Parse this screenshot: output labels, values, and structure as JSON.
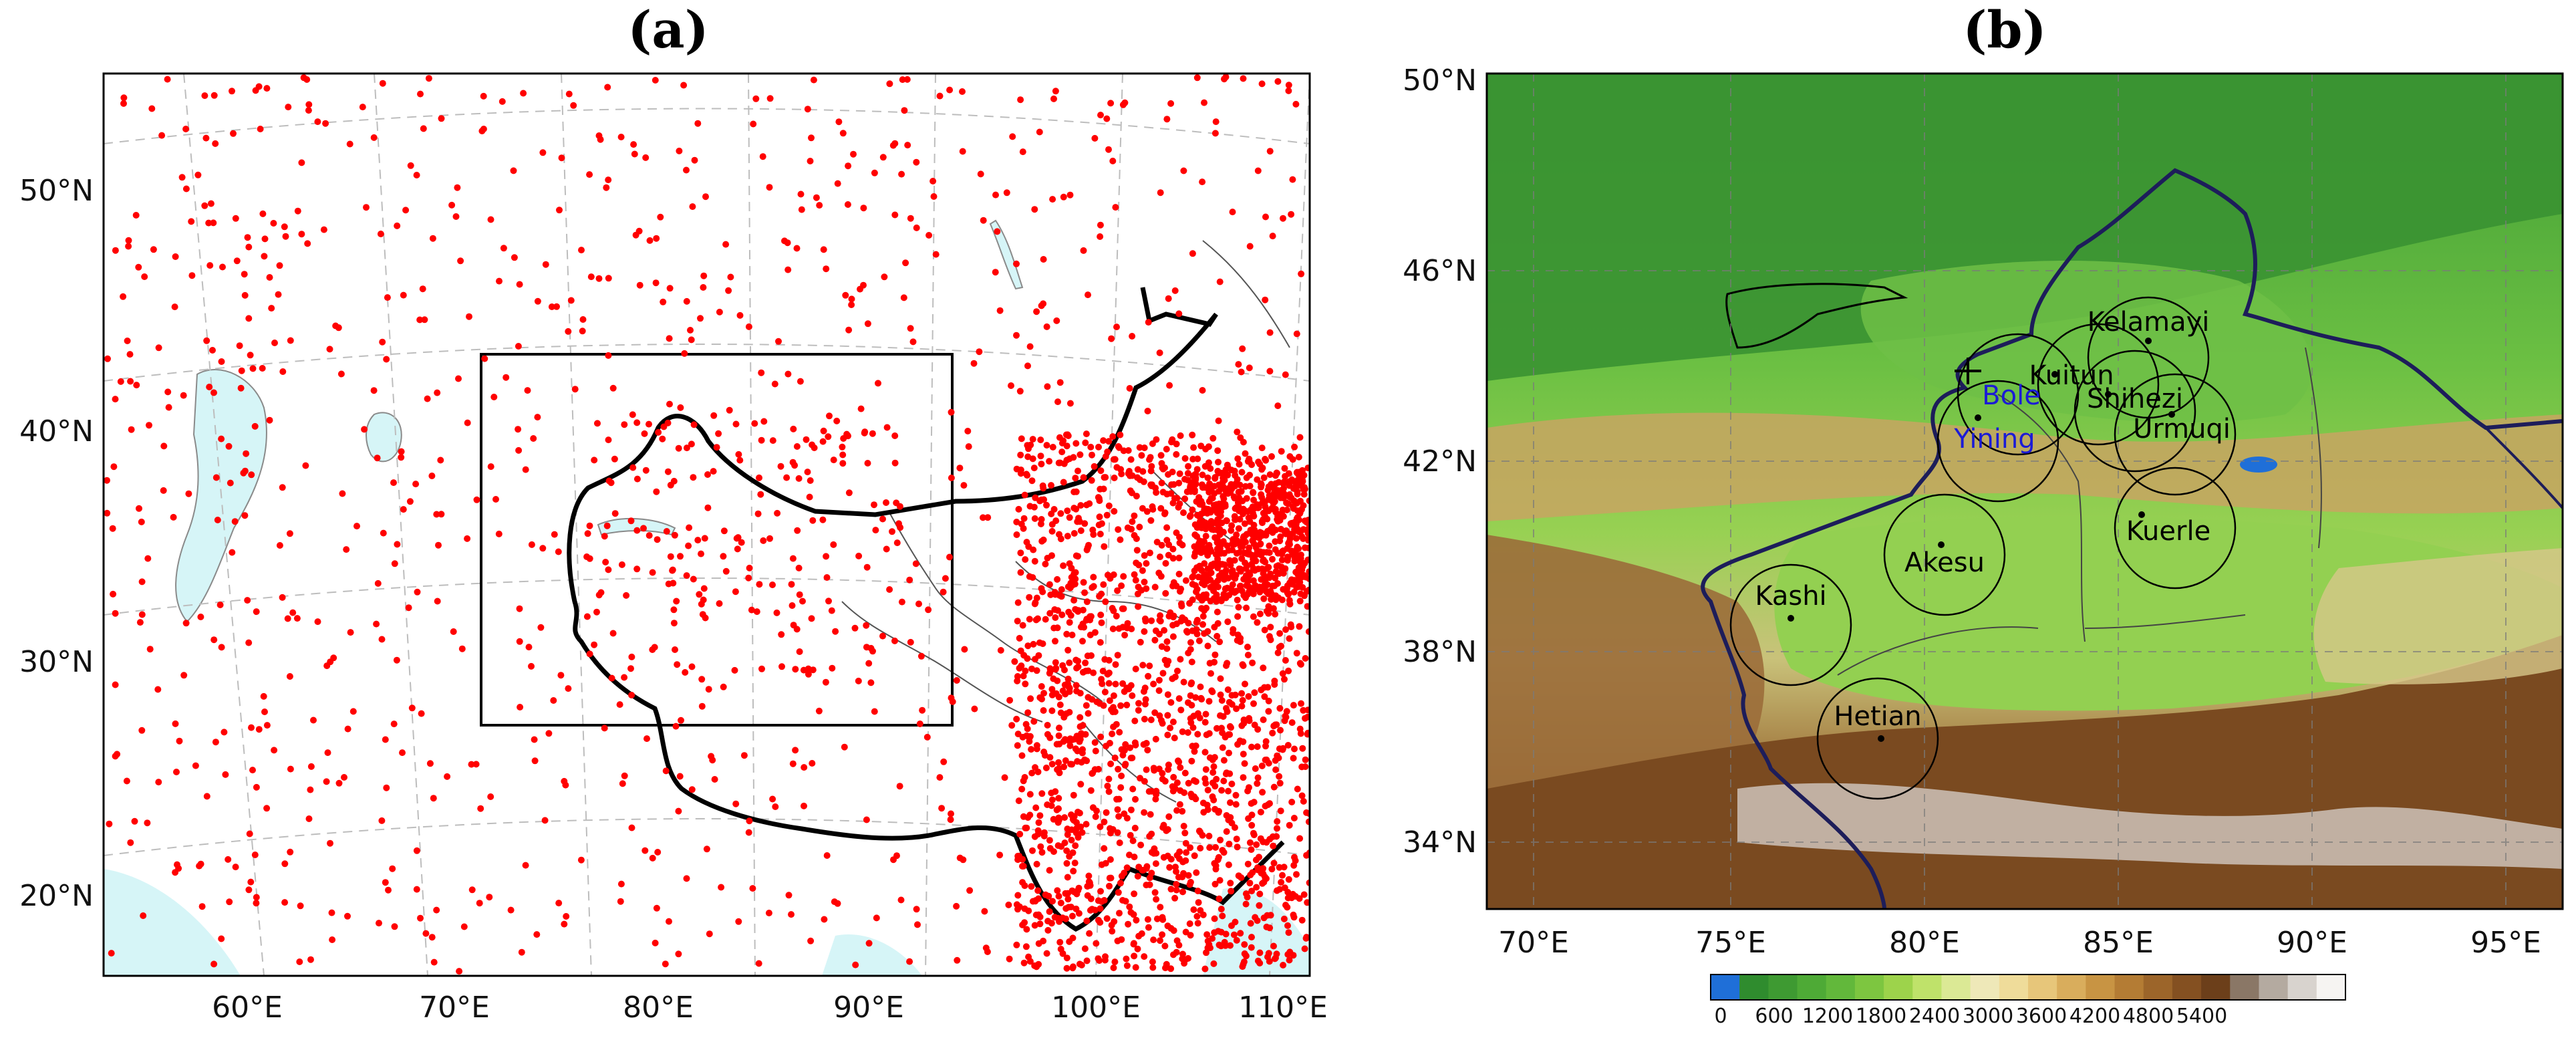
{
  "panels": {
    "a": {
      "label": "(a)",
      "lat_ticks": [
        "50°N",
        "40°N",
        "30°N",
        "20°N"
      ],
      "lon_ticks": [
        "60°E",
        "70°E",
        "80°E",
        "90°E",
        "100°E",
        "110°E"
      ],
      "station_color": "#ff0000",
      "land_color": "#ffffff",
      "water_color": "#d6f5f7",
      "border_color": "#000000"
    },
    "b": {
      "label": "(b)",
      "lat_ticks": [
        "50°N",
        "46°N",
        "42°N",
        "38°N",
        "34°N"
      ],
      "lon_ticks": [
        "70°E",
        "75°E",
        "80°E",
        "85°E",
        "90°E",
        "95°E"
      ],
      "stations": [
        {
          "name": "Kelamayi",
          "color": "#000000"
        },
        {
          "name": "Kuitun",
          "color": "#000000"
        },
        {
          "name": "Bole",
          "color": "#1b1bd6"
        },
        {
          "name": "Shihezi",
          "color": "#000000"
        },
        {
          "name": "Yining",
          "color": "#1b1bd6"
        },
        {
          "name": "Urmuqi",
          "color": "#000000"
        },
        {
          "name": "Kuerle",
          "color": "#000000"
        },
        {
          "name": "Akesu",
          "color": "#000000"
        },
        {
          "name": "Kashi",
          "color": "#000000"
        },
        {
          "name": "Hetian",
          "color": "#000000"
        }
      ],
      "colorbar": {
        "labels": [
          "0",
          "600",
          "1200",
          "1800",
          "2400",
          "3000",
          "3600",
          "4200",
          "4800",
          "5400"
        ],
        "colors": [
          "#1f6fd8",
          "#2f8c2e",
          "#3e9a32",
          "#4eaa36",
          "#62b83b",
          "#7dc640",
          "#9dd34b",
          "#bfe26a",
          "#dbe995",
          "#eee8b8",
          "#efdc9a",
          "#e7c67a",
          "#d9ad5c",
          "#c89443",
          "#b47c34",
          "#9c652a",
          "#845021",
          "#6c3f1a",
          "#8a7766",
          "#b4aaa0",
          "#d8d3ce",
          "#f6f4f2"
        ]
      }
    }
  }
}
